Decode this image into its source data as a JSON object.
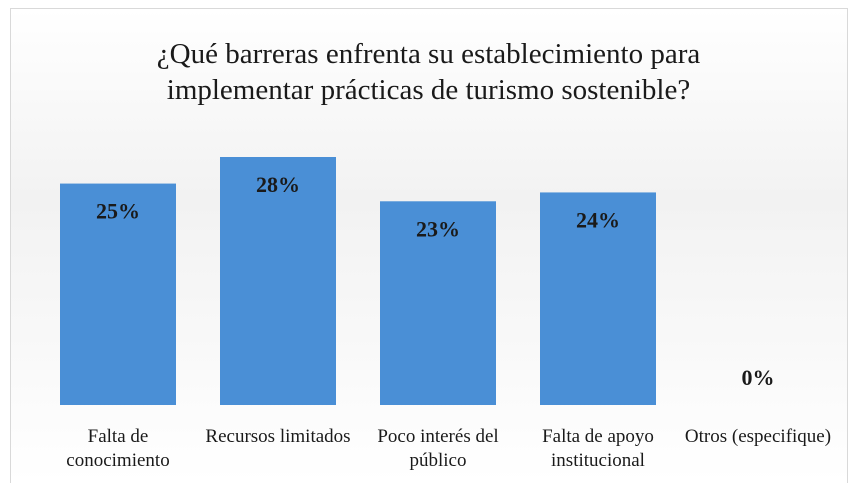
{
  "chart_data": {
    "type": "bar",
    "title": "¿Qué barreras enfrenta su establecimiento para implementar prácticas de turismo sostenible?",
    "categories": [
      "Falta de conocimiento",
      "Recursos limitados",
      "Poco interés del público",
      "Falta de apoyo institucional",
      "Otros (especifique)"
    ],
    "values": [
      25,
      28,
      23,
      24,
      0
    ],
    "value_labels": [
      "25%",
      "28%",
      "23%",
      "24%",
      "0%"
    ],
    "color": "#4a8fd6"
  }
}
